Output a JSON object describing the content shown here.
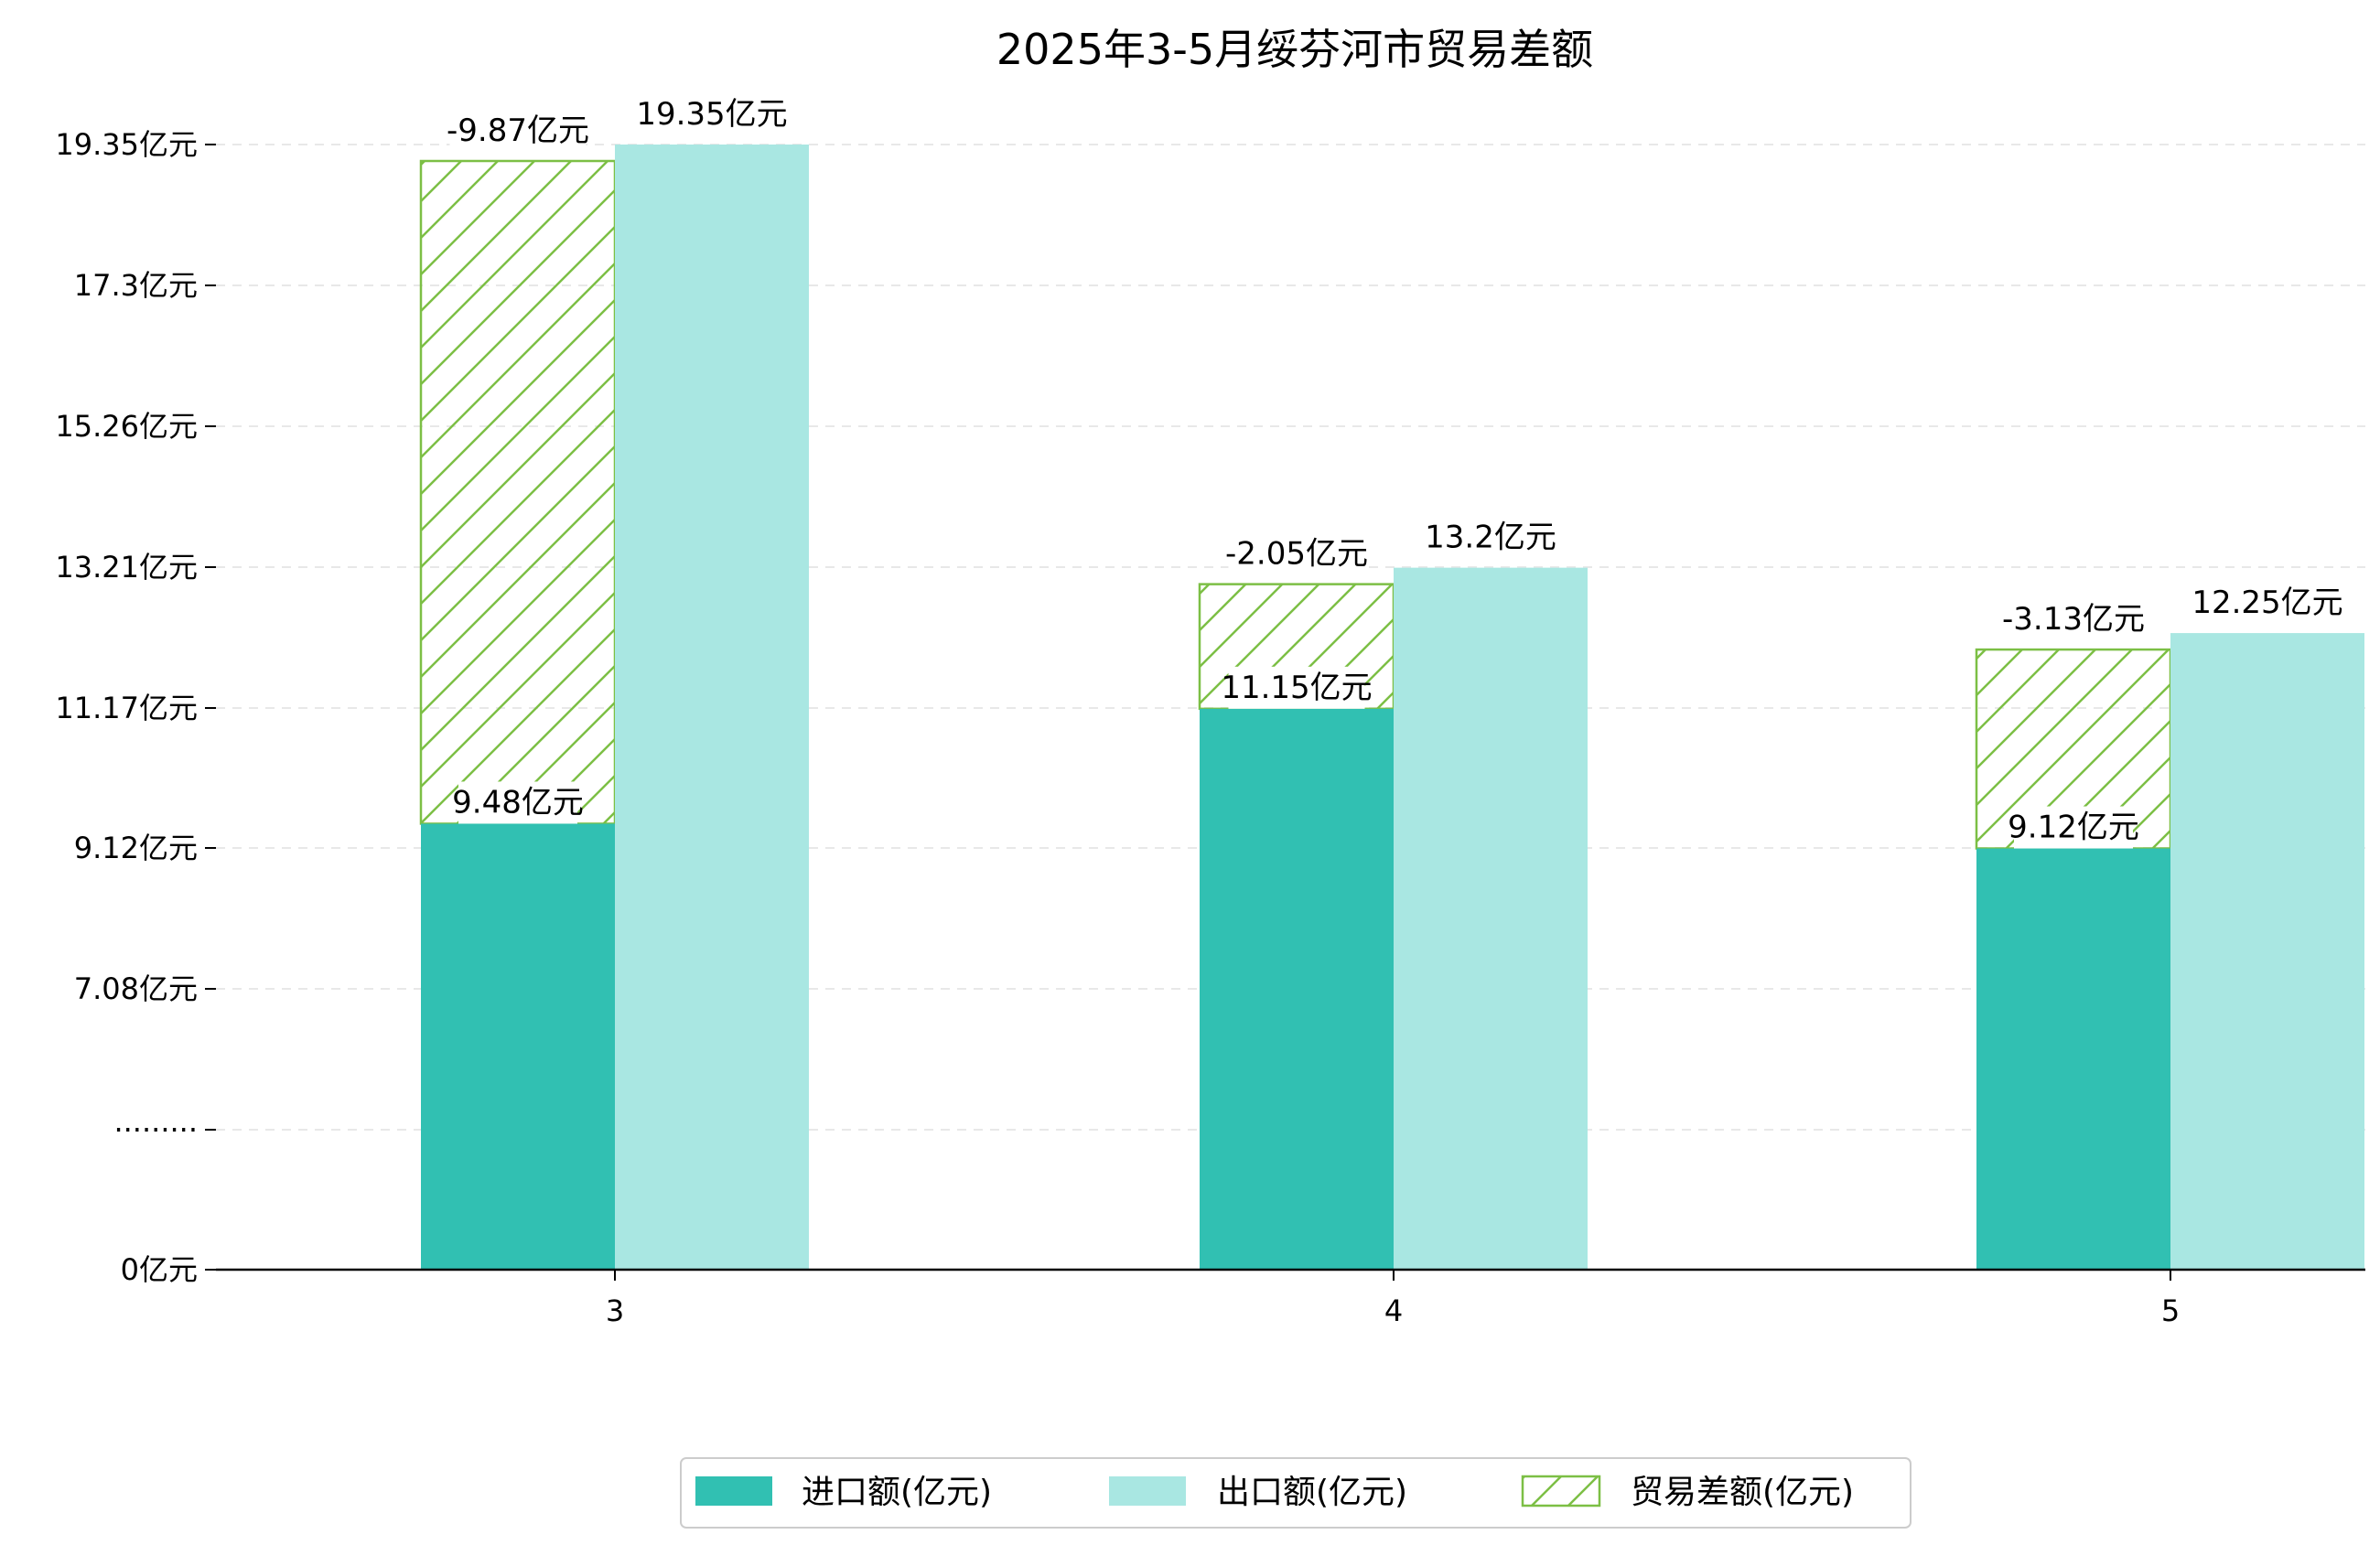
{
  "chart_data": {
    "type": "bar",
    "title": "2025年3-5月绥芬河市贸易差额",
    "categories": [
      "3",
      "4",
      "5"
    ],
    "series": [
      {
        "name": "进口额(亿元)",
        "values": [
          9.48,
          11.15,
          9.12
        ],
        "labels": [
          "9.48亿元",
          "11.15亿元",
          "9.12亿元"
        ],
        "color": "#31c0b2"
      },
      {
        "name": "出口额(亿元)",
        "values": [
          19.35,
          13.2,
          12.25
        ],
        "labels": [
          "19.35亿元",
          "13.2亿元",
          "12.25亿元"
        ],
        "color": "#a9e7e2"
      },
      {
        "name": "贸易差额(亿元)",
        "values": [
          -9.87,
          -2.05,
          -3.13
        ],
        "labels": [
          "-9.87亿元",
          "-2.05亿元",
          "-3.13亿元"
        ],
        "color": "#7cbf45",
        "pattern": "hatch"
      }
    ],
    "yticks": [
      {
        "label": "0亿元",
        "value": 0
      },
      {
        "label": "·········",
        "value": null
      },
      {
        "label": "7.08亿元",
        "value": 7.08
      },
      {
        "label": "9.12亿元",
        "value": 9.12
      },
      {
        "label": "11.17亿元",
        "value": 11.17
      },
      {
        "label": "13.21亿元",
        "value": 13.21
      },
      {
        "label": "15.26亿元",
        "value": 15.26
      },
      {
        "label": "17.3亿元",
        "value": 17.3
      },
      {
        "label": "19.35亿元",
        "value": 19.35
      }
    ],
    "axis_break": true,
    "grid": true,
    "legend_position": "bottom-center",
    "xlabel": "",
    "ylabel": ""
  }
}
